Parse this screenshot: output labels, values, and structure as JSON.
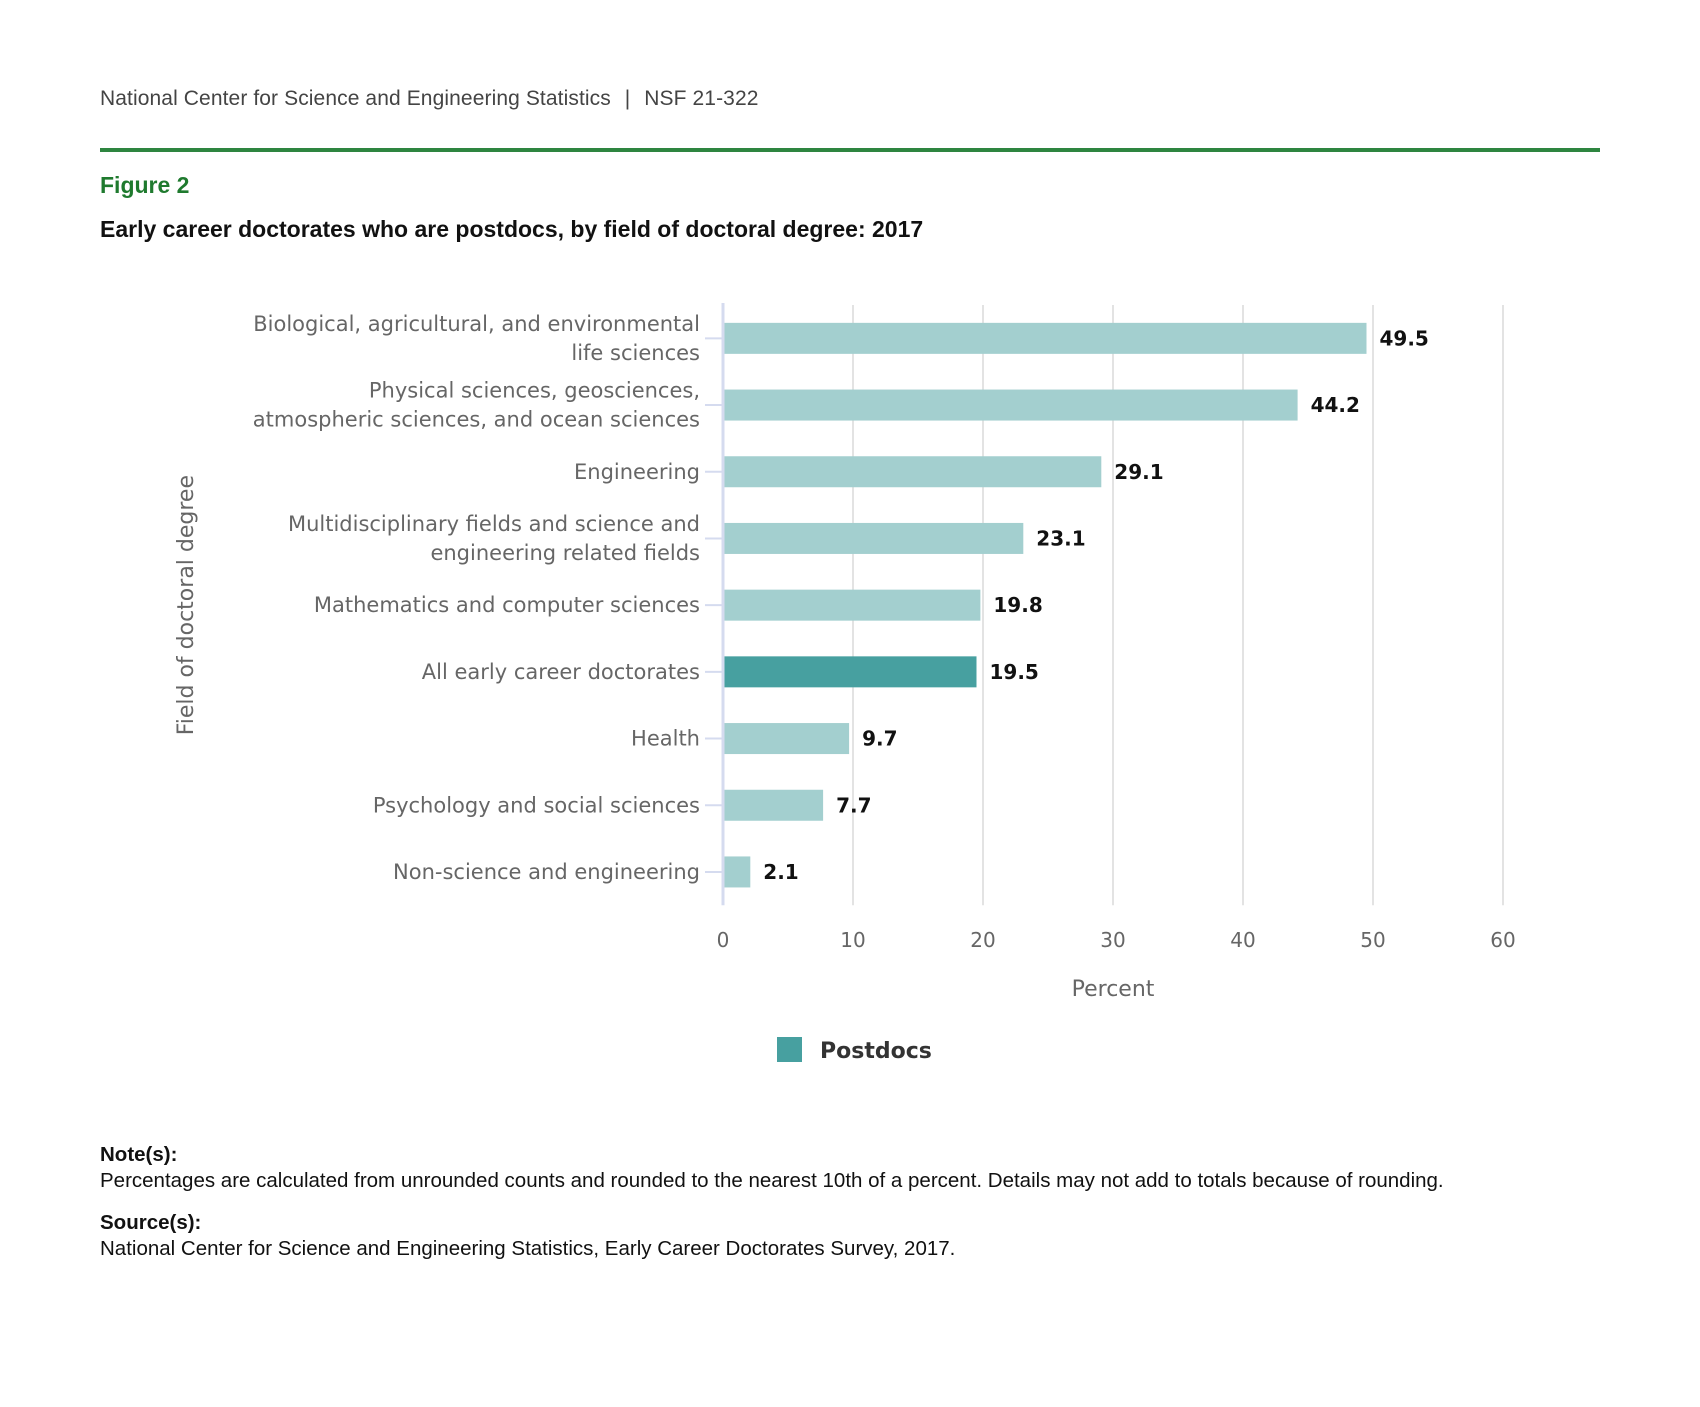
{
  "header": {
    "org": "National Center for Science and Engineering Statistics",
    "separator": "|",
    "report_id": "NSF 21-322"
  },
  "figure": {
    "number": "Figure 2",
    "title": "Early career doctorates who are postdocs, by field of doctoral degree: 2017"
  },
  "colors": {
    "accent_green": "#2e8540",
    "figure_label_green": "#1f7a2e",
    "bar_light": "#a3cfcf",
    "bar_highlight": "#47a0a0",
    "gridline": "#e3e3e3",
    "axis_line": "#d5dbef"
  },
  "chart_data": {
    "type": "bar",
    "orientation": "horizontal",
    "title": "Early career doctorates who are postdocs, by field of doctoral degree: 2017",
    "xlabel": "Percent",
    "ylabel": "Field of doctoral degree",
    "xlim": [
      0,
      60
    ],
    "xticks": [
      0,
      10,
      20,
      30,
      40,
      50,
      60
    ],
    "grid": true,
    "legend": {
      "placement": "bottom-center",
      "entries": [
        "Postdocs"
      ]
    },
    "categories": [
      [
        "Biological, agricultural, and environmental",
        "life sciences"
      ],
      [
        "Physical sciences, geosciences,",
        "atmospheric sciences, and ocean sciences"
      ],
      [
        "Engineering"
      ],
      [
        "Multidisciplinary fields and science and",
        "engineering related fields"
      ],
      [
        "Mathematics and computer sciences"
      ],
      [
        "All early career doctorates"
      ],
      [
        "Health"
      ],
      [
        "Psychology and social sciences"
      ],
      [
        "Non-science and engineering"
      ]
    ],
    "series": [
      {
        "name": "Postdocs",
        "values": [
          49.5,
          44.2,
          29.1,
          23.1,
          19.8,
          19.5,
          9.7,
          7.7,
          2.1
        ],
        "value_labels": [
          "49.5",
          "44.2",
          "29.1",
          "23.1",
          "19.8",
          "19.5",
          "9.7",
          "7.7",
          "2.1"
        ],
        "highlight_index": 5
      }
    ]
  },
  "notes": {
    "notes_heading": "Note(s):",
    "notes_text": "Percentages are calculated from unrounded counts and rounded to the nearest 10th of a percent. Details may not add to totals because of rounding.",
    "source_heading": "Source(s):",
    "source_text": "National Center for Science and Engineering Statistics, Early Career Doctorates Survey, 2017."
  }
}
